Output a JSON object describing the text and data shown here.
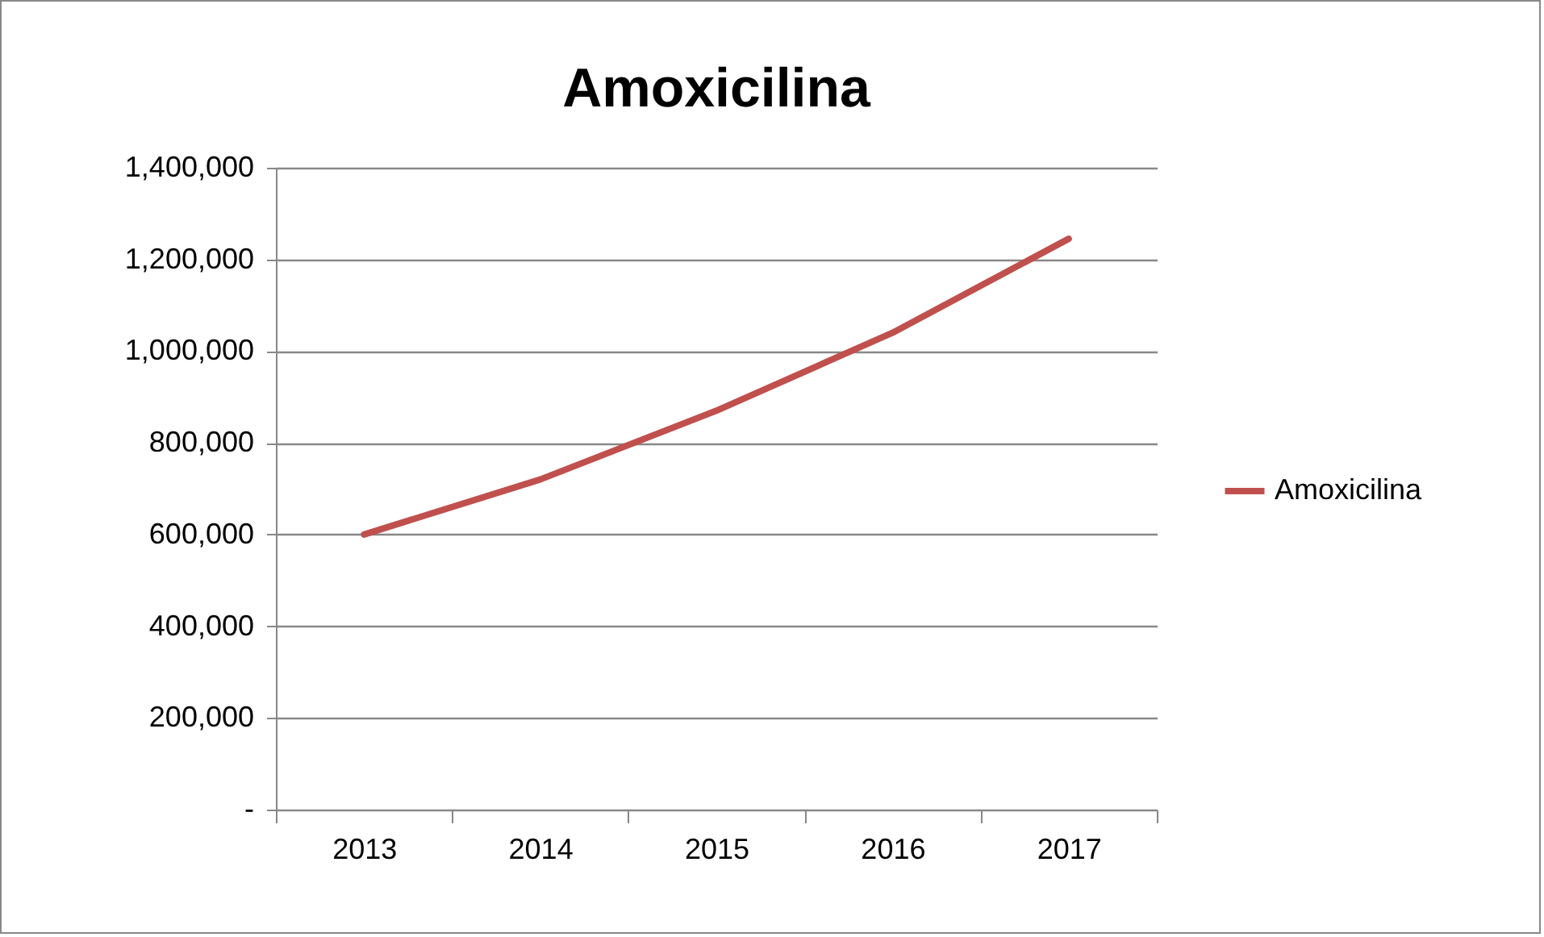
{
  "chart_data": {
    "type": "line",
    "title": "Amoxicilina",
    "categories": [
      "2013",
      "2014",
      "2015",
      "2016",
      "2017"
    ],
    "series": [
      {
        "name": "Amoxicilina",
        "color": "#c0504d",
        "values": [
          600000,
          720000,
          870000,
          1040000,
          1245000
        ]
      }
    ],
    "ylim": [
      0,
      1400000
    ],
    "yticks": [
      {
        "value": 0,
        "label": "-"
      },
      {
        "value": 200000,
        "label": "200,000"
      },
      {
        "value": 400000,
        "label": "400,000"
      },
      {
        "value": 600000,
        "label": "600,000"
      },
      {
        "value": 800000,
        "label": "800,000"
      },
      {
        "value": 1000000,
        "label": "1,000,000"
      },
      {
        "value": 1200000,
        "label": "1,200,000"
      },
      {
        "value": 1400000,
        "label": "1,400,000"
      }
    ],
    "grid": "y",
    "legend": "right",
    "marker": "none",
    "line_style": "solid"
  }
}
